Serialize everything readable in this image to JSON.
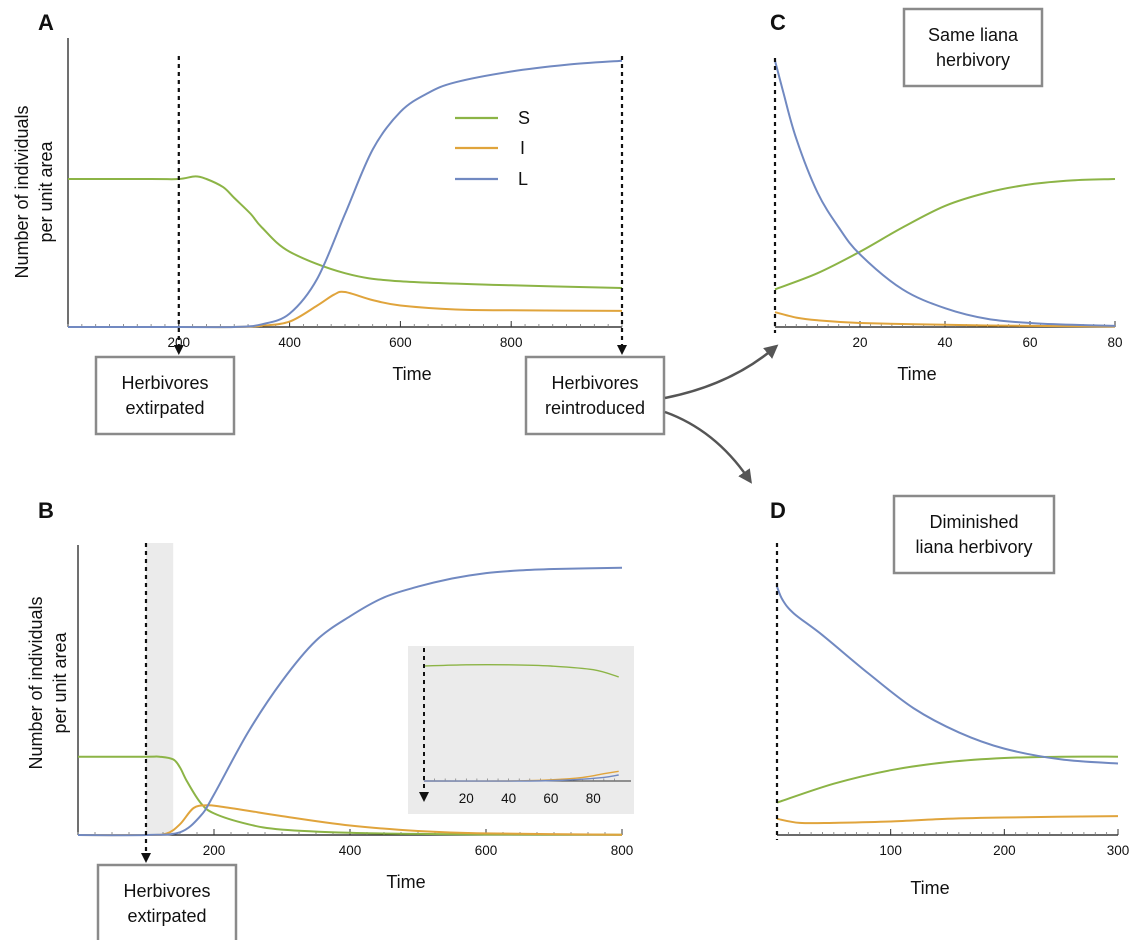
{
  "colors": {
    "S": "#8cb446",
    "I": "#e0a43c",
    "L": "#7189c1",
    "box_border": "#8a8a8a",
    "shade": "#ebebeb",
    "arrow": "#555555"
  },
  "panels": {
    "A": {
      "letter": "A",
      "ylabel_lines": [
        "Number of individuals",
        "per unit area"
      ],
      "xlabel": "Time",
      "box_left_lines": [
        "Herbivores",
        "extirpated"
      ],
      "box_right_lines": [
        "Herbivores",
        "reintroduced"
      ]
    },
    "B": {
      "letter": "B",
      "ylabel_lines": [
        "Number of individuals",
        "per unit area"
      ],
      "xlabel": "Time",
      "box_lines": [
        "Herbivores",
        "extirpated"
      ]
    },
    "C": {
      "letter": "C",
      "xlabel": "Time",
      "box_lines": [
        "Same liana",
        "herbivory"
      ]
    },
    "D": {
      "letter": "D",
      "xlabel": "Time",
      "box_lines": [
        "Diminished",
        "liana herbivory"
      ]
    }
  },
  "chart_data": [
    {
      "panel": "A",
      "type": "line",
      "xlabel": "Time",
      "ylabel": "Number of individuals per unit area",
      "xlim": [
        0,
        1000
      ],
      "ylim": [
        0,
        1
      ],
      "xticks": [
        200,
        400,
        600,
        800
      ],
      "legend": [
        "S",
        "I",
        "L"
      ],
      "legend_position": "top-right",
      "vlines": [
        200,
        1000
      ],
      "series": [
        {
          "name": "S",
          "x": [
            0,
            150,
            200,
            230,
            250,
            280,
            300,
            330,
            350,
            400,
            500,
            600,
            800,
            1000
          ],
          "y": [
            0.55,
            0.55,
            0.55,
            0.56,
            0.55,
            0.52,
            0.48,
            0.42,
            0.37,
            0.28,
            0.2,
            0.17,
            0.155,
            0.145
          ]
        },
        {
          "name": "I",
          "x": [
            0,
            200,
            300,
            350,
            400,
            450,
            480,
            500,
            550,
            600,
            700,
            800,
            1000
          ],
          "y": [
            0,
            0,
            0,
            0.005,
            0.02,
            0.08,
            0.12,
            0.13,
            0.1,
            0.08,
            0.065,
            0.062,
            0.06
          ]
        },
        {
          "name": "L",
          "x": [
            0,
            200,
            300,
            350,
            400,
            450,
            500,
            550,
            600,
            650,
            700,
            800,
            900,
            1000
          ],
          "y": [
            0,
            0,
            0,
            0.01,
            0.05,
            0.18,
            0.42,
            0.66,
            0.8,
            0.87,
            0.91,
            0.95,
            0.975,
            0.99
          ]
        }
      ]
    },
    {
      "panel": "B",
      "type": "line",
      "xlabel": "Time",
      "ylabel": "Number of individuals per unit area",
      "xlim": [
        0,
        800
      ],
      "ylim": [
        0,
        1
      ],
      "xticks": [
        200,
        400,
        600,
        800
      ],
      "vlines": [
        100
      ],
      "shaded_x": [
        100,
        140
      ],
      "series": [
        {
          "name": "S",
          "x": [
            0,
            100,
            120,
            140,
            150,
            160,
            180,
            200,
            250,
            300,
            400,
            500,
            600,
            800
          ],
          "y": [
            0.29,
            0.29,
            0.29,
            0.28,
            0.25,
            0.2,
            0.12,
            0.08,
            0.04,
            0.02,
            0.008,
            0.004,
            0.002,
            0.001
          ]
        },
        {
          "name": "I",
          "x": [
            0,
            100,
            130,
            150,
            170,
            190,
            210,
            250,
            300,
            400,
            500,
            600,
            800
          ],
          "y": [
            0,
            0,
            0.005,
            0.04,
            0.1,
            0.11,
            0.105,
            0.09,
            0.07,
            0.035,
            0.015,
            0.006,
            0.001
          ]
        },
        {
          "name": "L",
          "x": [
            0,
            100,
            150,
            180,
            200,
            250,
            300,
            350,
            400,
            450,
            500,
            550,
            600,
            650,
            700,
            800
          ],
          "y": [
            0,
            0,
            0.01,
            0.07,
            0.15,
            0.38,
            0.57,
            0.72,
            0.81,
            0.88,
            0.92,
            0.95,
            0.97,
            0.98,
            0.985,
            0.99
          ]
        }
      ],
      "inset": {
        "xlim": [
          0,
          95
        ],
        "ylim": [
          0,
          1
        ],
        "xticks": [
          20,
          40,
          60,
          80
        ],
        "vlines": [
          0
        ],
        "series": [
          {
            "name": "S",
            "x": [
              0,
              20,
              40,
              60,
              80,
              92
            ],
            "y": [
              0.95,
              0.96,
              0.96,
              0.95,
              0.92,
              0.86
            ]
          },
          {
            "name": "I",
            "x": [
              0,
              40,
              60,
              75,
              85,
              92
            ],
            "y": [
              0,
              0,
              0.01,
              0.03,
              0.06,
              0.08
            ]
          },
          {
            "name": "L",
            "x": [
              0,
              50,
              70,
              85,
              92
            ],
            "y": [
              0,
              0,
              0.01,
              0.03,
              0.05
            ]
          }
        ]
      }
    },
    {
      "panel": "C",
      "type": "line",
      "xlabel": "Time",
      "xlim": [
        0,
        80
      ],
      "ylim": [
        0,
        1
      ],
      "xticks": [
        20,
        40,
        60,
        80
      ],
      "vlines": [
        0
      ],
      "series": [
        {
          "name": "S",
          "x": [
            0,
            10,
            20,
            30,
            40,
            50,
            60,
            70,
            80
          ],
          "y": [
            0.14,
            0.2,
            0.28,
            0.37,
            0.45,
            0.5,
            0.53,
            0.545,
            0.55
          ]
        },
        {
          "name": "I",
          "x": [
            0,
            5,
            10,
            20,
            40,
            60,
            80
          ],
          "y": [
            0.055,
            0.035,
            0.025,
            0.015,
            0.008,
            0.004,
            0.002
          ]
        },
        {
          "name": "L",
          "x": [
            0,
            2,
            5,
            10,
            15,
            20,
            30,
            40,
            50,
            60,
            70,
            80
          ],
          "y": [
            0.99,
            0.87,
            0.7,
            0.5,
            0.37,
            0.27,
            0.14,
            0.07,
            0.03,
            0.015,
            0.008,
            0.004
          ]
        }
      ]
    },
    {
      "panel": "D",
      "type": "line",
      "xlabel": "Time",
      "xlim": [
        0,
        300
      ],
      "ylim": [
        0,
        1
      ],
      "xticks": [
        100,
        200,
        300
      ],
      "vlines": [
        0
      ],
      "series": [
        {
          "name": "S",
          "x": [
            0,
            50,
            100,
            150,
            200,
            250,
            300
          ],
          "y": [
            0.12,
            0.19,
            0.24,
            0.27,
            0.285,
            0.29,
            0.29
          ]
        },
        {
          "name": "I",
          "x": [
            0,
            20,
            50,
            100,
            150,
            200,
            300
          ],
          "y": [
            0.06,
            0.045,
            0.045,
            0.05,
            0.06,
            0.065,
            0.07
          ]
        },
        {
          "name": "L",
          "x": [
            0,
            5,
            15,
            40,
            80,
            120,
            160,
            200,
            250,
            300
          ],
          "y": [
            0.92,
            0.87,
            0.82,
            0.74,
            0.6,
            0.47,
            0.38,
            0.32,
            0.28,
            0.265
          ]
        }
      ]
    }
  ]
}
